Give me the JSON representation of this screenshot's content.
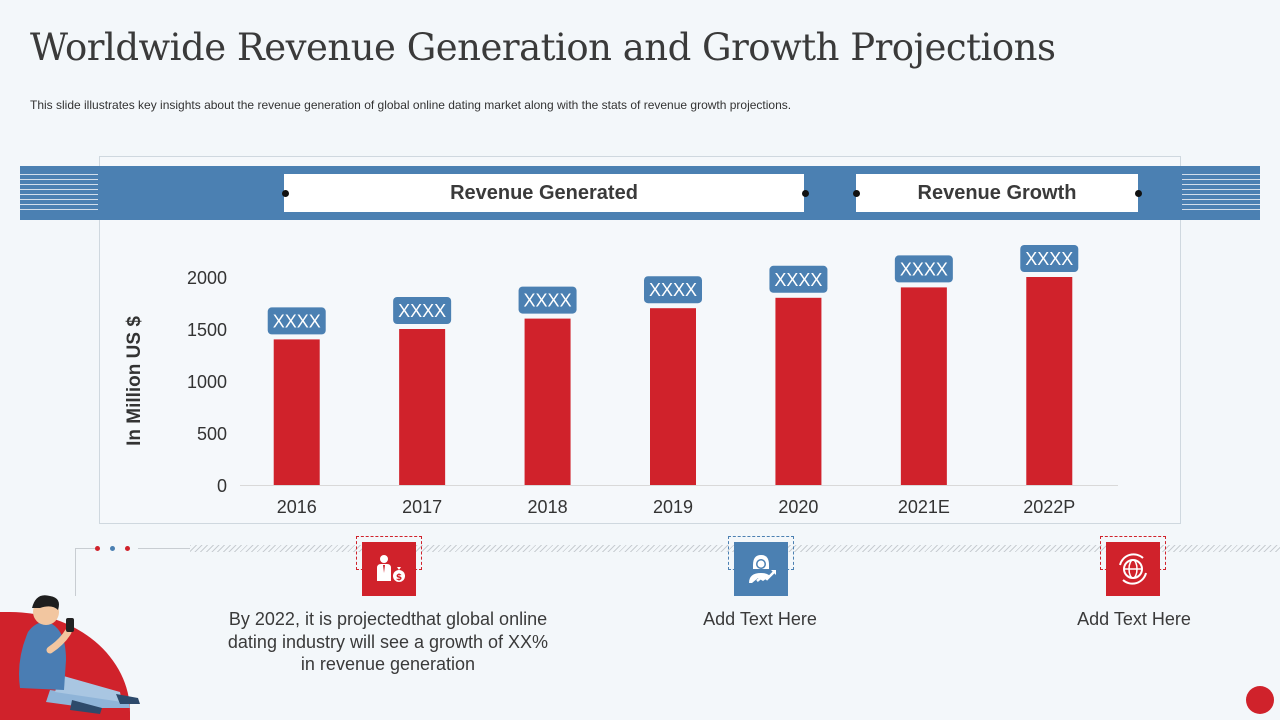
{
  "title": "Worldwide Revenue Generation and Growth Projections",
  "subtitle": "This slide illustrates key insights about the revenue  generation  of global online dating market along with the stats of revenue  growth projections.",
  "header": {
    "revenue_generated": "Revenue Generated",
    "revenue_growth": "Revenue Growth"
  },
  "colors": {
    "bar": "#d0222b",
    "label_bg": "#4b80b2",
    "band": "#4b80b2",
    "accent_red": "#d0222b"
  },
  "chart_data": {
    "type": "bar",
    "categories": [
      "2016",
      "2017",
      "2018",
      "2019",
      "2020",
      "2021E",
      "2022P"
    ],
    "values": [
      1400,
      1500,
      1600,
      1700,
      1800,
      1900,
      2000
    ],
    "data_labels": [
      "XXXX",
      "XXXX",
      "XXXX",
      "XXXX",
      "XXXX",
      "XXXX",
      "XXXX"
    ],
    "ylabel": "In Million  US $",
    "xlabel": "",
    "ylim": [
      0,
      2000
    ],
    "yticks": [
      0,
      500,
      1000,
      1500,
      2000
    ],
    "grid": false,
    "legend": "none"
  },
  "bottom": {
    "items": [
      {
        "icon": "businessman-money-bag-icon",
        "text": "By 2022, it is projectedthat global online dating industry will see a growth of XX% in revenue generation"
      },
      {
        "icon": "woman-growth-chart-icon",
        "text": "Add Text Here"
      },
      {
        "icon": "globe-refresh-icon",
        "text": "Add Text Here"
      }
    ]
  }
}
